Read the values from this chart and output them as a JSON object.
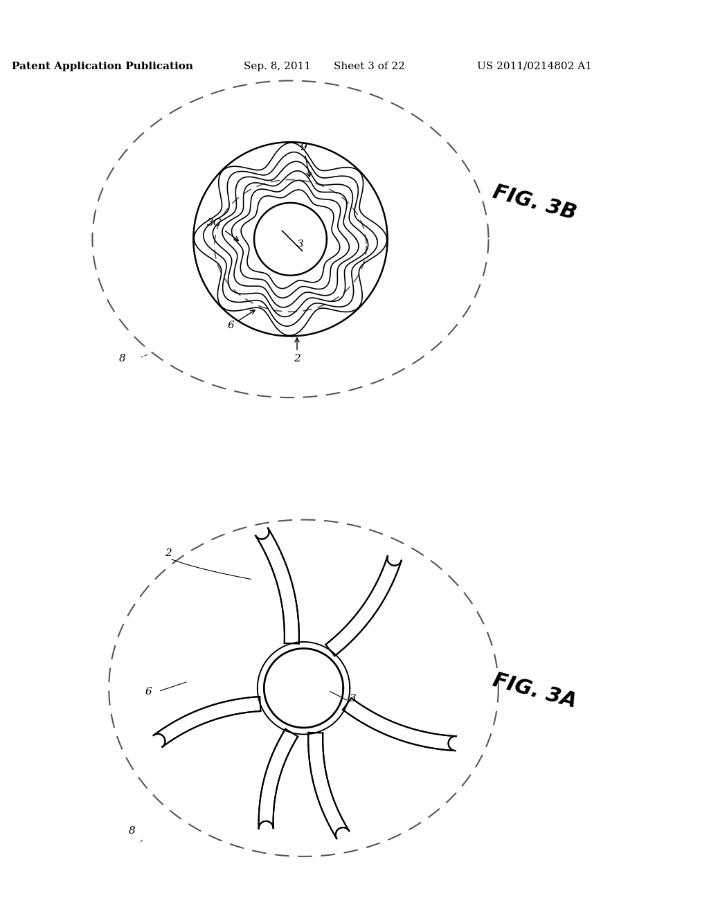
{
  "bg_color": "#ffffff",
  "header_text": "Patent Application Publication",
  "header_date": "Sep. 8, 2011",
  "header_sheet": "Sheet 3 of 22",
  "header_patent": "US 2011/0214802 A1",
  "header_fontsize": 11,
  "fig_label_3B": "FIG. 3B",
  "fig_label_3A": "FIG. 3A",
  "fig_label_fontsize": 22,
  "line_color": "#000000",
  "dashed_color": "#555555",
  "note_fontsize": 12,
  "annotation_fontsize": 11
}
